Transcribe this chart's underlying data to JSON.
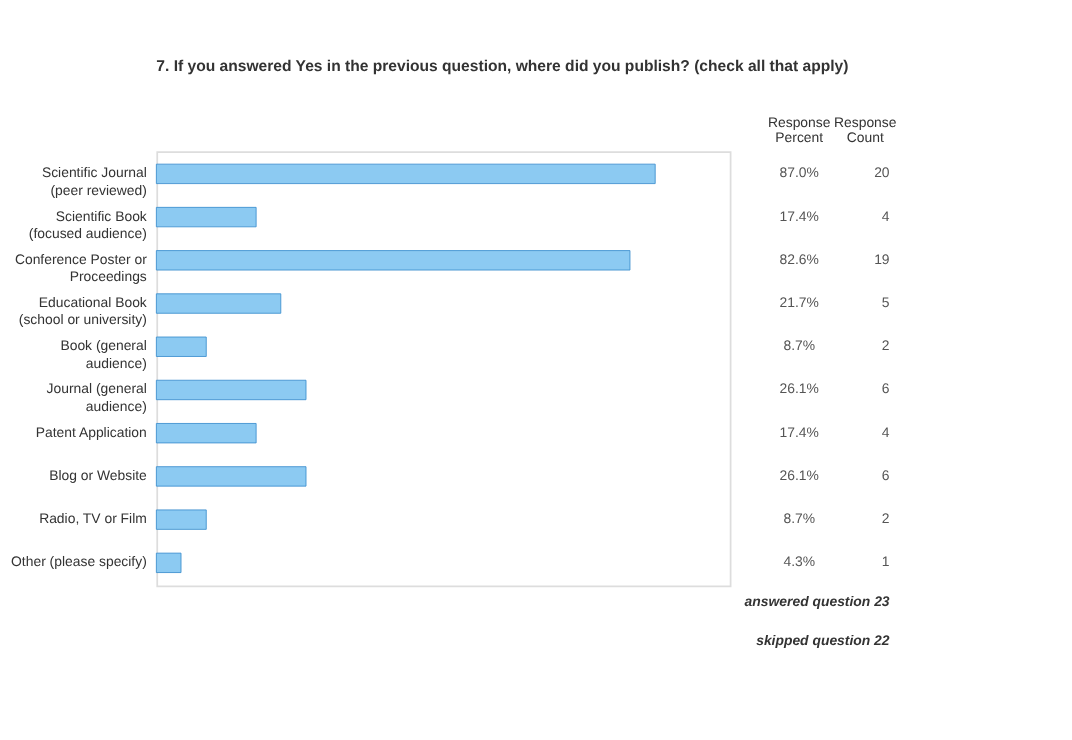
{
  "chart_data": {
    "type": "bar",
    "orientation": "horizontal",
    "title": "7. If you answered Yes in the previous question, where did you publish? (check all that apply)",
    "categories": [
      "Scientific Journal (peer reviewed)",
      "Scientific Book (focused audience)",
      "Conference Poster or Proceedings",
      "Educational Book (school or university)",
      "Book (general audience)",
      "Journal (general audience)",
      "Patent Application",
      "Blog or Website",
      "Radio, TV or Film",
      "Other (please specify)"
    ],
    "values": [
      87.0,
      17.4,
      82.6,
      21.7,
      8.7,
      26.1,
      17.4,
      26.1,
      8.7,
      4.3
    ],
    "value_labels": [
      "87.0%",
      "17.4%",
      "82.6%",
      "21.7%",
      "8.7%",
      "26.1%",
      "17.4%",
      "26.1%",
      "8.7%",
      "4.3%"
    ],
    "color": "#8ccaf2",
    "xlim": [
      0,
      100
    ],
    "tick_labels": "y",
    "grid": false,
    "annotations": [
      "Response Percent",
      "Response Count",
      "20",
      "4",
      "19",
      "5",
      "2",
      "6",
      "4",
      "6",
      "2",
      "1",
      "answered question 23",
      "skipped question 22"
    ]
  }
}
